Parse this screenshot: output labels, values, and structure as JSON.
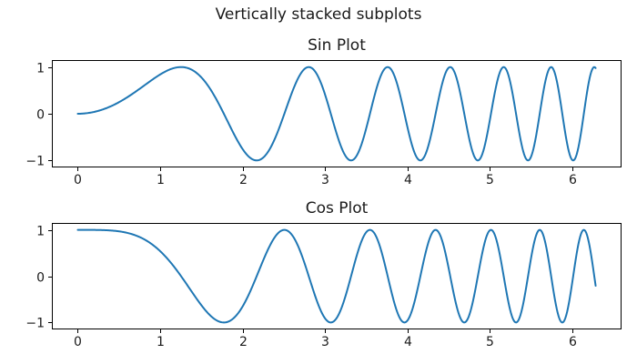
{
  "figure": {
    "suptitle": "Vertically stacked subplots",
    "background_color": "#ffffff",
    "text_color": "#1a1a1a",
    "spine_color": "#000000"
  },
  "chart_data": [
    {
      "type": "line",
      "title": "Sin Plot",
      "series": [
        {
          "name": "sin(x^2)",
          "function": "sin(x^2)",
          "x_range": [
            0,
            6.2832
          ],
          "samples": 600
        }
      ],
      "xlim": [
        -0.3142,
        6.5973
      ],
      "ylim": [
        -1.15,
        1.15
      ],
      "xticks": [
        0,
        1,
        2,
        3,
        4,
        5,
        6
      ],
      "xtick_labels": [
        "0",
        "1",
        "2",
        "3",
        "4",
        "5",
        "6"
      ],
      "yticks": [
        -1,
        0,
        1
      ],
      "ytick_labels": [
        "−1",
        "0",
        "1"
      ],
      "grid": false,
      "legend": null,
      "line_color": "#1f77b4",
      "line_width": 2
    },
    {
      "type": "line",
      "title": "Cos Plot",
      "series": [
        {
          "name": "cos(x^2)",
          "function": "cos(x^2)",
          "x_range": [
            0,
            6.2832
          ],
          "samples": 600
        }
      ],
      "xlim": [
        -0.3142,
        6.5973
      ],
      "ylim": [
        -1.15,
        1.15
      ],
      "xticks": [
        0,
        1,
        2,
        3,
        4,
        5,
        6
      ],
      "xtick_labels": [
        "0",
        "1",
        "2",
        "3",
        "4",
        "5",
        "6"
      ],
      "yticks": [
        -1,
        0,
        1
      ],
      "ytick_labels": [
        "−1",
        "0",
        "1"
      ],
      "grid": false,
      "legend": null,
      "line_color": "#1f77b4",
      "line_width": 2
    }
  ]
}
